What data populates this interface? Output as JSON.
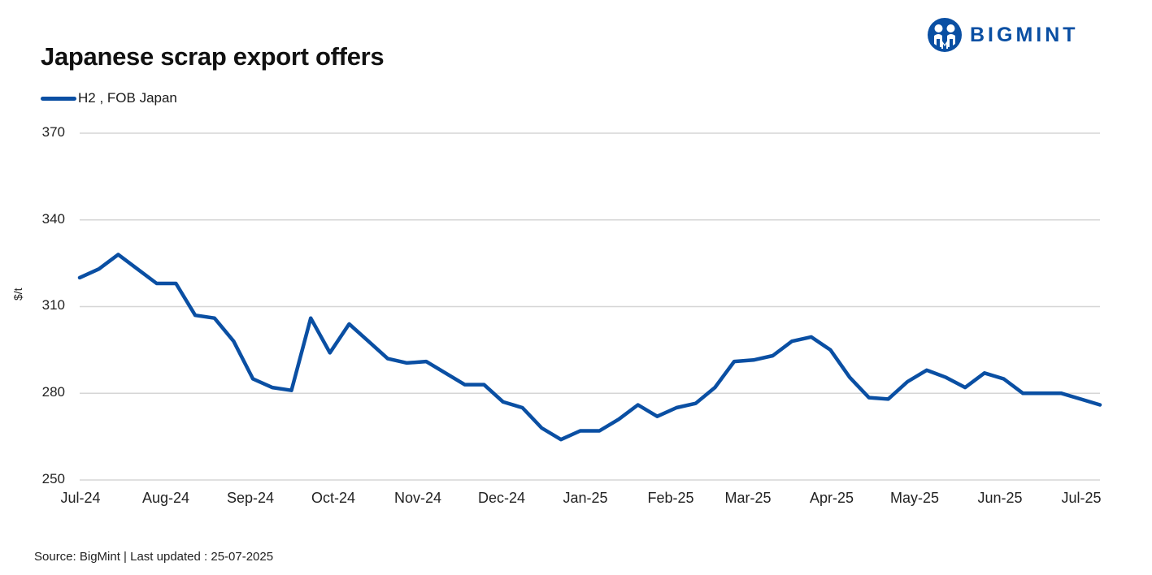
{
  "header": {
    "title": "Japanese scrap export offers",
    "logo_text": "BIGMINT",
    "logo_icon": "bigmint-people-icon"
  },
  "legend": {
    "label": "H2 , FOB Japan",
    "color": "#0a4fa3"
  },
  "axis": {
    "ylabel": "$/t",
    "yticks": [
      "370",
      "340",
      "310",
      "280",
      "250"
    ],
    "xticks": [
      "Jul-24",
      "Aug-24",
      "Sep-24",
      "Oct-24",
      "Nov-24",
      "Dec-24",
      "Jan-25",
      "Feb-25",
      "Mar-25",
      "Apr-25",
      "May-25",
      "Jun-25",
      "Jul-25"
    ]
  },
  "footer": {
    "text": "Source: BigMint  | Last updated : 25-07-2025"
  },
  "chart_data": {
    "type": "line",
    "title": "Japanese scrap export offers",
    "xlabel": "",
    "ylabel": "$/t",
    "ylim": [
      250,
      370
    ],
    "yticks": [
      250,
      280,
      310,
      340,
      370
    ],
    "grid": true,
    "legend_position": "top-left",
    "x_tick_labels": [
      "Jul-24",
      "Aug-24",
      "Sep-24",
      "Oct-24",
      "Nov-24",
      "Dec-24",
      "Jan-25",
      "Feb-25",
      "Mar-25",
      "Apr-25",
      "May-25",
      "Jun-25",
      "Jul-25"
    ],
    "frequency": "weekly",
    "series": [
      {
        "name": "H2 , FOB Japan",
        "color": "#0a4fa3",
        "values": [
          320,
          323,
          328,
          323,
          318,
          318,
          307,
          306,
          298,
          285,
          282,
          281,
          306,
          294,
          304,
          298,
          292,
          290.5,
          291,
          287,
          283,
          283,
          277,
          275,
          268,
          264,
          267,
          267,
          271,
          276,
          272,
          275,
          276.5,
          282,
          291,
          291.5,
          293,
          298,
          299.5,
          295,
          285.5,
          278.5,
          278,
          284,
          288,
          285.5,
          282,
          287,
          285,
          280,
          280,
          280,
          278,
          276
        ]
      }
    ]
  }
}
